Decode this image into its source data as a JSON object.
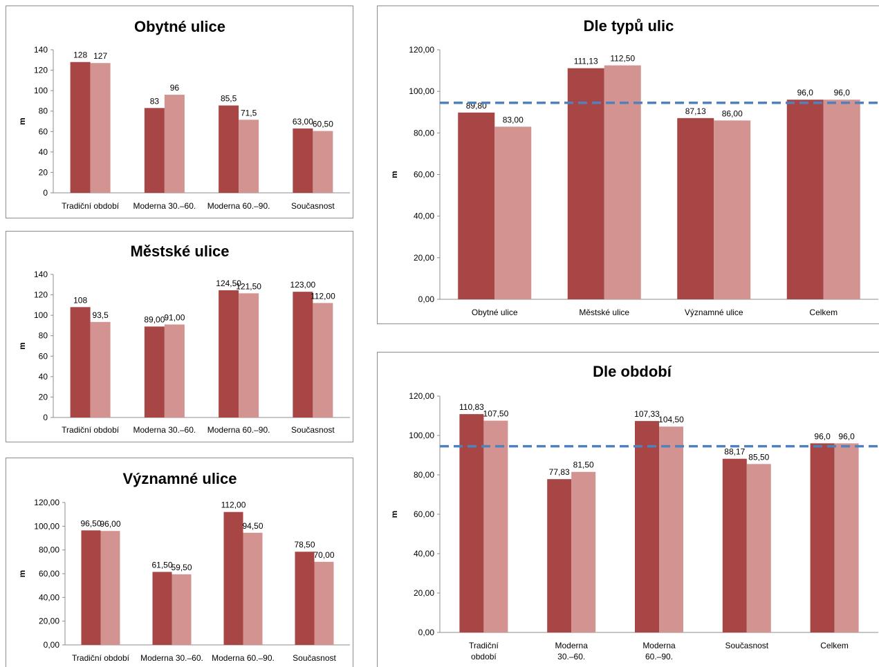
{
  "colors": {
    "series1": "#a84646",
    "series2": "#d39390",
    "reference": "#4f81bd",
    "axis": "#8c8c8c"
  },
  "chart_data": [
    {
      "type": "bar",
      "title": "Obytné ulice",
      "ylabel": "m",
      "ylim": [
        0,
        140
      ],
      "yticks": [
        "0",
        "20",
        "40",
        "60",
        "80",
        "100",
        "120",
        "140"
      ],
      "categories": [
        "Tradiční období",
        "Moderna 30.–60.",
        "Moderna 60.–90.",
        "Současnost"
      ],
      "series": [
        {
          "values": [
            128,
            83,
            85.5,
            63
          ],
          "labels": [
            "128",
            "83",
            "85,5",
            "63,00"
          ]
        },
        {
          "values": [
            127,
            96,
            71.5,
            60.5
          ],
          "labels": [
            "127",
            "96",
            "71,5",
            "60,50"
          ]
        }
      ]
    },
    {
      "type": "bar",
      "title": "Městské ulice",
      "ylabel": "m",
      "ylim": [
        0,
        140
      ],
      "yticks": [
        "0",
        "20",
        "40",
        "60",
        "80",
        "100",
        "120",
        "140"
      ],
      "categories": [
        "Tradiční období",
        "Moderna 30.–60.",
        "Moderna 60.–90.",
        "Současnost"
      ],
      "series": [
        {
          "values": [
            108,
            89,
            124.5,
            123
          ],
          "labels": [
            "108",
            "89,00",
            "124,50",
            "123,00"
          ]
        },
        {
          "values": [
            93.5,
            91,
            121.5,
            112
          ],
          "labels": [
            "93,5",
            "91,00",
            "121,50",
            "112,00"
          ]
        }
      ]
    },
    {
      "type": "bar",
      "title": "Významné ulice",
      "ylabel": "m",
      "ylim": [
        0,
        120
      ],
      "yticks": [
        "0,00",
        "20,00",
        "40,00",
        "60,00",
        "80,00",
        "100,00",
        "120,00"
      ],
      "categories": [
        "Tradiční období",
        "Moderna 30.–60.",
        "Moderna 60.–90.",
        "Současnost"
      ],
      "series": [
        {
          "values": [
            96.5,
            61.5,
            112,
            78.5
          ],
          "labels": [
            "96,50",
            "61,50",
            "112,00",
            "78,50"
          ]
        },
        {
          "values": [
            96,
            59.5,
            94.5,
            70
          ],
          "labels": [
            "96,00",
            "59,50",
            "94,50",
            "70,00"
          ]
        }
      ]
    },
    {
      "type": "bar",
      "title": "Dle typů ulic",
      "ylabel": "m",
      "ylim": [
        0,
        120
      ],
      "yticks": [
        "0,00",
        "20,00",
        "40,00",
        "60,00",
        "80,00",
        "100,00",
        "120,00"
      ],
      "categories": [
        "Obytné ulice",
        "Městské ulice",
        "Významné ulice",
        "Celkem"
      ],
      "series": [
        {
          "values": [
            89.8,
            111.13,
            87.13,
            96
          ],
          "labels": [
            "89,80",
            "111,13",
            "87,13",
            "96,0"
          ]
        },
        {
          "values": [
            83,
            112.5,
            86,
            96
          ],
          "labels": [
            "83,00",
            "112,50",
            "86,00",
            "96,0"
          ]
        }
      ],
      "reference_line": 94.5
    },
    {
      "type": "bar",
      "title": "Dle období",
      "ylabel": "m",
      "ylim": [
        0,
        120
      ],
      "yticks": [
        "0,00",
        "20,00",
        "40,00",
        "60,00",
        "80,00",
        "100,00",
        "120,00"
      ],
      "categories": [
        "Tradiční\nobdobí",
        "Moderna\n30.–60.",
        "Moderna\n60.–90.",
        "Současnost",
        "Celkem"
      ],
      "series": [
        {
          "values": [
            110.83,
            77.83,
            107.33,
            88.17,
            96
          ],
          "labels": [
            "110,83",
            "77,83",
            "107,33",
            "88,17",
            "96,0"
          ]
        },
        {
          "values": [
            107.5,
            81.5,
            104.5,
            85.5,
            96
          ],
          "labels": [
            "107,50",
            "81,50",
            "104,50",
            "85,50",
            "96,0"
          ]
        }
      ],
      "reference_line": 94.5
    }
  ]
}
